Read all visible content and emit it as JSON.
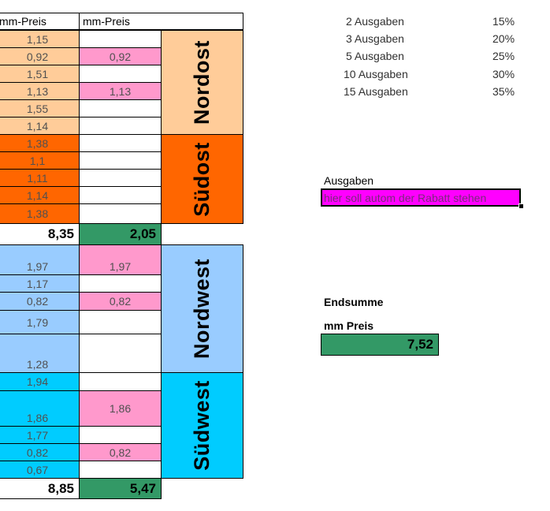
{
  "headers": {
    "col1": "mm-Preis",
    "col2": "mm-Preis"
  },
  "colors": {
    "nordost": "#FFCC99",
    "suedost": "#FF6600",
    "nordwest": "#99CCFF",
    "suedwest": "#00CCFF",
    "pink": "#FF99CC",
    "green": "#339966",
    "magenta": "#FF00FF"
  },
  "groups": {
    "nordost": {
      "label": "Nordost",
      "col1": [
        "1,15",
        "0,92",
        "1,51",
        "1,13",
        "1,55",
        "1,14"
      ],
      "col2": [
        "",
        "0,92",
        "",
        "1,13",
        "",
        ""
      ]
    },
    "suedost": {
      "label": "Südost",
      "col1": [
        "1,38",
        "1,1",
        "1,11",
        "1,14",
        "1,38"
      ],
      "col2": [
        "",
        "",
        "",
        "",
        ""
      ]
    },
    "nordwest": {
      "label": "Nordwest",
      "col1": [
        "1,97",
        "1,17",
        "0,82",
        "1,79",
        "1,28"
      ],
      "col2": [
        "1,97",
        "",
        "0,82",
        "",
        ""
      ]
    },
    "suedwest": {
      "label": "Südwest",
      "col1": [
        "1,94",
        "1,86",
        "1,77",
        "0,82",
        "0,67"
      ],
      "col2": [
        "",
        "1,86",
        "",
        "0,82",
        ""
      ]
    }
  },
  "sums": {
    "east_col1": "8,35",
    "east_col2": "2,05",
    "west_col1": "8,85",
    "west_col2": "5,47"
  },
  "rabatt": [
    {
      "label": "2 Ausgaben",
      "pct": "15%"
    },
    {
      "label": "3 Ausgaben",
      "pct": "20%"
    },
    {
      "label": "5 Ausgaben",
      "pct": "25%"
    },
    {
      "label": "10 Ausgaben",
      "pct": "30%"
    },
    {
      "label": "15 Ausgaben",
      "pct": "35%"
    }
  ],
  "ausgaben": {
    "label": "Ausgaben",
    "value": "hier soll autom der Rabatt stehen"
  },
  "endsumme": {
    "label1": "Endsumme",
    "label2": "mm Preis",
    "value": "7,52"
  }
}
